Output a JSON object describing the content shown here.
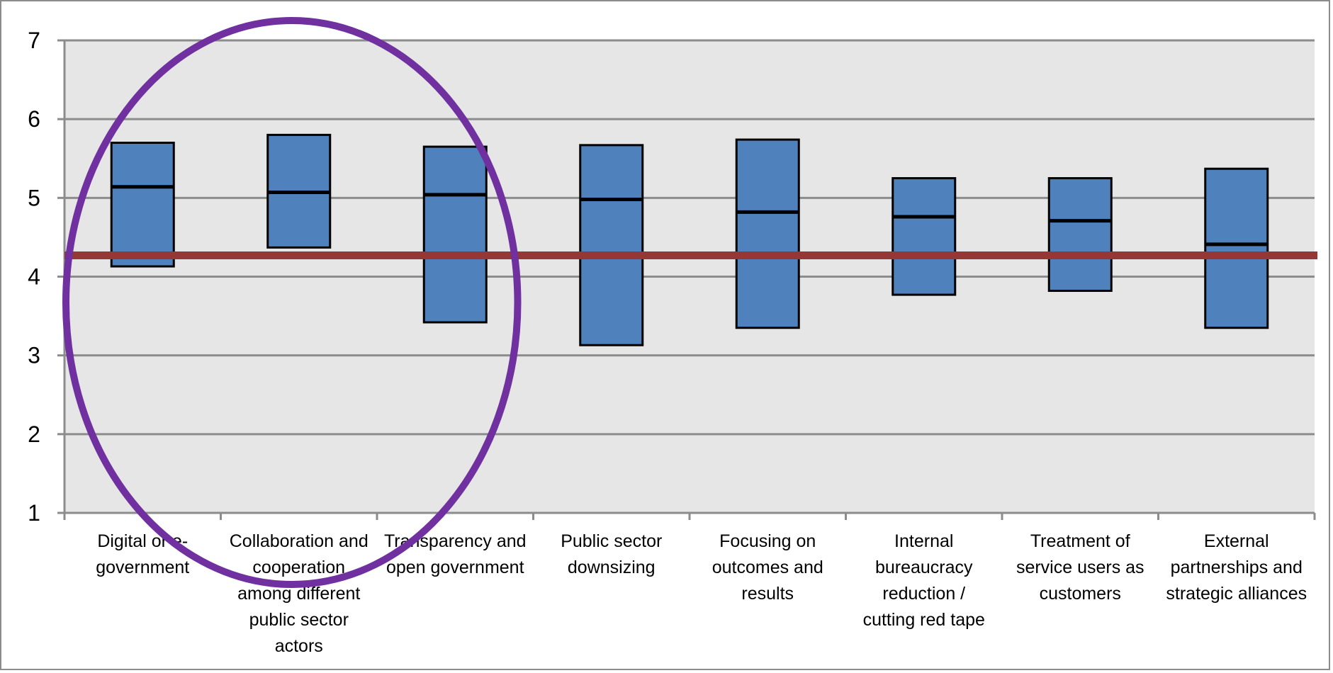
{
  "chart_data": {
    "type": "box",
    "title": "",
    "xlabel": "",
    "ylabel": "",
    "ylim": [
      1,
      7
    ],
    "yticks": [
      "1",
      "2",
      "3",
      "4",
      "5",
      "6",
      "7"
    ],
    "grid": true,
    "categories": [
      "Digital or e-government",
      "Collaboration and cooperation among different public sector actors",
      "Transparency and open government",
      "Public sector downsizing",
      "Focusing on outcomes and results",
      "Internal bureaucracy reduction / cutting red tape",
      "Treatment of service users as customers",
      "External partnerships and strategic alliances"
    ],
    "category_label_lines": [
      [
        "Digital or e-",
        "government"
      ],
      [
        "Collaboration and",
        "cooperation",
        "among different",
        "public sector",
        "actors"
      ],
      [
        "Transparency and",
        "open government"
      ],
      [
        "Public sector",
        "downsizing"
      ],
      [
        "Focusing on",
        "outcomes and",
        "results"
      ],
      [
        "Internal",
        "bureaucracy",
        "reduction /",
        "cutting red tape"
      ],
      [
        "Treatment of",
        "service users as",
        "customers"
      ],
      [
        "External",
        "partnerships and",
        "strategic alliances"
      ]
    ],
    "low": [
      4.13,
      4.37,
      3.42,
      3.13,
      3.35,
      3.77,
      3.82,
      3.35
    ],
    "median": [
      5.14,
      5.07,
      5.04,
      4.98,
      4.82,
      4.76,
      4.71,
      4.41
    ],
    "high": [
      5.7,
      5.8,
      5.65,
      5.67,
      5.74,
      5.25,
      5.25,
      5.37
    ],
    "reference_line": 4.27,
    "highlight_categories": [
      0,
      1,
      2
    ]
  },
  "colors": {
    "plot_background": "#e6e6e6",
    "box_fill": "#4f81bd",
    "box_stroke": "#000000",
    "reference_line": "#953735",
    "highlight_ellipse": "#7030a0",
    "grid": "#8c8c8c"
  }
}
